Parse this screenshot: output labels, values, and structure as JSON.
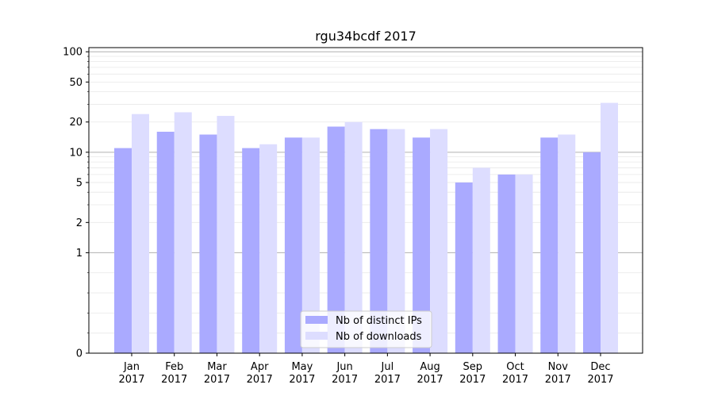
{
  "chart_data": {
    "type": "bar",
    "title": "rgu34bcdf 2017",
    "xlabel": "",
    "ylabel": "",
    "y_scale": "symlog",
    "ylim": [
      0,
      110
    ],
    "yticks": [
      {
        "value": 0,
        "label": "0"
      },
      {
        "value": 1,
        "label": "1"
      },
      {
        "value": 2,
        "label": "2"
      },
      {
        "value": 5,
        "label": "5"
      },
      {
        "value": 10,
        "label": "10"
      },
      {
        "value": 20,
        "label": "20"
      },
      {
        "value": 50,
        "label": "50"
      },
      {
        "value": 100,
        "label": "100"
      }
    ],
    "categories": [
      {
        "month": "Jan",
        "year": "2017"
      },
      {
        "month": "Feb",
        "year": "2017"
      },
      {
        "month": "Mar",
        "year": "2017"
      },
      {
        "month": "Apr",
        "year": "2017"
      },
      {
        "month": "May",
        "year": "2017"
      },
      {
        "month": "Jun",
        "year": "2017"
      },
      {
        "month": "Jul",
        "year": "2017"
      },
      {
        "month": "Aug",
        "year": "2017"
      },
      {
        "month": "Sep",
        "year": "2017"
      },
      {
        "month": "Oct",
        "year": "2017"
      },
      {
        "month": "Nov",
        "year": "2017"
      },
      {
        "month": "Dec",
        "year": "2017"
      }
    ],
    "series": [
      {
        "name": "Nb of distinct IPs",
        "color": "#aaaaff",
        "values": [
          11,
          16,
          15,
          11,
          14,
          18,
          17,
          14,
          5,
          6,
          14,
          10
        ]
      },
      {
        "name": "Nb of downloads",
        "color": "#ddddff",
        "values": [
          24,
          25,
          23,
          12,
          14,
          20,
          17,
          17,
          7,
          6,
          15,
          31
        ]
      }
    ],
    "grid": true,
    "legend_position": "bottom-center"
  }
}
